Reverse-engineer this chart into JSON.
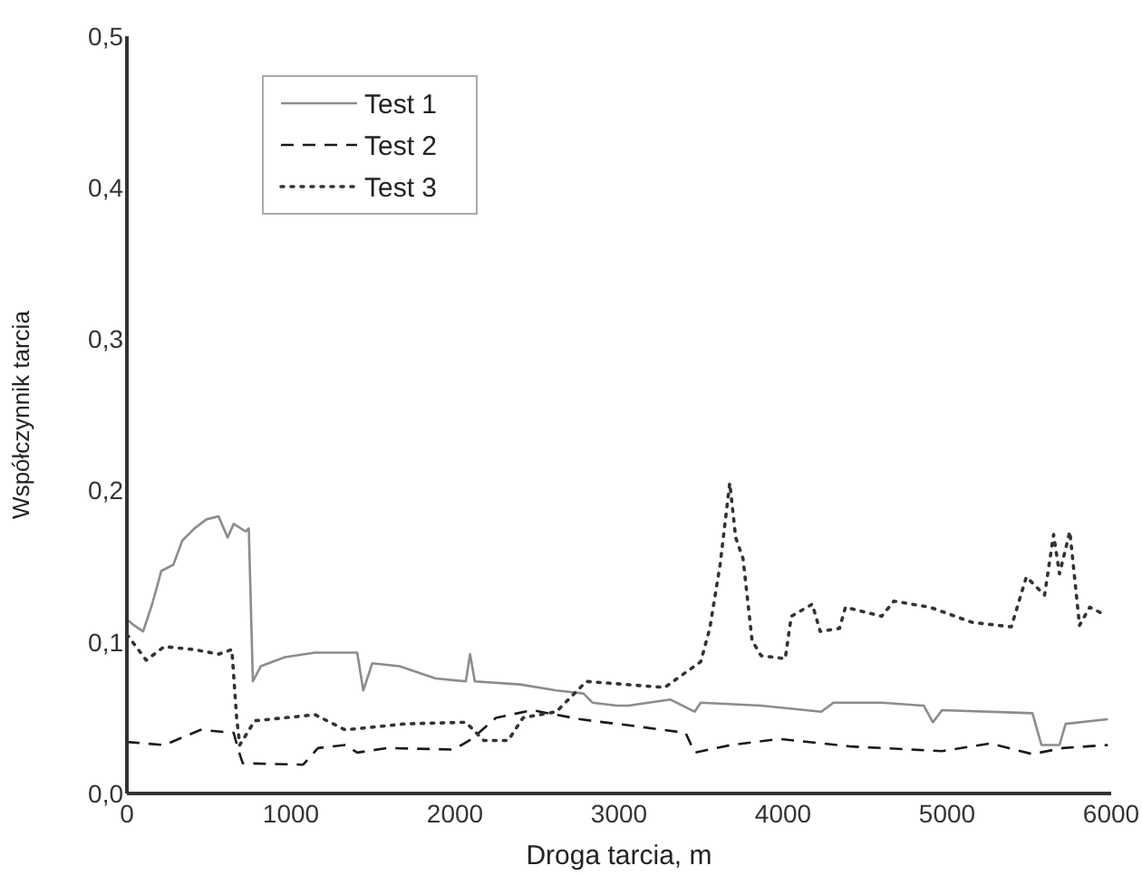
{
  "chart_data": {
    "type": "line",
    "xlabel": "Droga tarcia, m",
    "ylabel": "Współczynnik tarcia",
    "xlim": [
      0,
      6000
    ],
    "xticks": [
      0,
      1000,
      2000,
      3000,
      4000,
      5000,
      6000
    ],
    "ylim": [
      0,
      0.5
    ],
    "yticks": [
      {
        "value": 0,
        "label": "0,0"
      },
      {
        "value": 0.1,
        "label": "0,1"
      },
      {
        "value": 0.2,
        "label": "0,2"
      },
      {
        "value": 0.3,
        "label": "0,3"
      },
      {
        "value": 0.4,
        "label": "0,4"
      },
      {
        "value": 0.5,
        "label": "0,5"
      }
    ],
    "grid": false,
    "legend": "top left",
    "marker": "none",
    "series": [
      {
        "name": "Test 1",
        "color": "#8c8c8c",
        "line_style": "solid",
        "x": [
          0,
          44,
          99,
          154,
          210,
          283,
          338,
          412,
          485,
          559,
          614,
          651,
          724,
          743,
          768,
          816,
          963,
          1147,
          1404,
          1441,
          1496,
          1662,
          1882,
          2066,
          2092,
          2121,
          2397,
          2618,
          2783,
          2838,
          2985,
          3057,
          3314,
          3461,
          3498,
          3866,
          4233,
          4307,
          4601,
          4858,
          4913,
          4969,
          5520,
          5575,
          5685,
          5722,
          5980
        ],
        "values": [
          0.115,
          0.111,
          0.107,
          0.125,
          0.147,
          0.151,
          0.167,
          0.175,
          0.181,
          0.183,
          0.169,
          0.178,
          0.173,
          0.175,
          0.074,
          0.084,
          0.09,
          0.093,
          0.093,
          0.068,
          0.086,
          0.084,
          0.076,
          0.074,
          0.092,
          0.074,
          0.072,
          0.068,
          0.066,
          0.06,
          0.058,
          0.058,
          0.062,
          0.054,
          0.06,
          0.058,
          0.054,
          0.06,
          0.06,
          0.058,
          0.047,
          0.055,
          0.053,
          0.032,
          0.032,
          0.046,
          0.049
        ]
      },
      {
        "name": "Test 2",
        "color": "#1a1a1a",
        "line_style": "dashed",
        "x": [
          0,
          228,
          449,
          651,
          676,
          706,
          1074,
          1165,
          1331,
          1404,
          1588,
          1993,
          2103,
          2250,
          2471,
          2763,
          3131,
          3406,
          3461,
          3682,
          3976,
          4417,
          4969,
          5263,
          5520,
          5704,
          5980
        ],
        "values": [
          0.034,
          0.032,
          0.042,
          0.04,
          0.03,
          0.02,
          0.019,
          0.03,
          0.032,
          0.027,
          0.03,
          0.029,
          0.036,
          0.05,
          0.055,
          0.049,
          0.044,
          0.04,
          0.027,
          0.032,
          0.036,
          0.031,
          0.028,
          0.033,
          0.026,
          0.03,
          0.032
        ]
      },
      {
        "name": "Test 3",
        "color": "#333333",
        "line_style": "dotted",
        "x": [
          0,
          118,
          228,
          412,
          559,
          640,
          669,
          688,
          779,
          1147,
          1331,
          1699,
          2066,
          2176,
          2324,
          2415,
          2618,
          2801,
          3278,
          3498,
          3553,
          3616,
          3675,
          3711,
          3756,
          3811,
          3866,
          4013,
          4050,
          4178,
          4226,
          4344,
          4380,
          4601,
          4675,
          4895,
          5152,
          5391,
          5483,
          5594,
          5649,
          5685,
          5748,
          5807,
          5869,
          5961
        ],
        "values": [
          0.105,
          0.088,
          0.097,
          0.095,
          0.092,
          0.095,
          0.05,
          0.032,
          0.048,
          0.052,
          0.042,
          0.046,
          0.047,
          0.035,
          0.035,
          0.05,
          0.054,
          0.074,
          0.07,
          0.087,
          0.109,
          0.151,
          0.205,
          0.169,
          0.155,
          0.101,
          0.091,
          0.089,
          0.117,
          0.125,
          0.107,
          0.109,
          0.123,
          0.117,
          0.127,
          0.123,
          0.113,
          0.11,
          0.143,
          0.131,
          0.171,
          0.145,
          0.173,
          0.111,
          0.123,
          0.118
        ]
      }
    ]
  }
}
